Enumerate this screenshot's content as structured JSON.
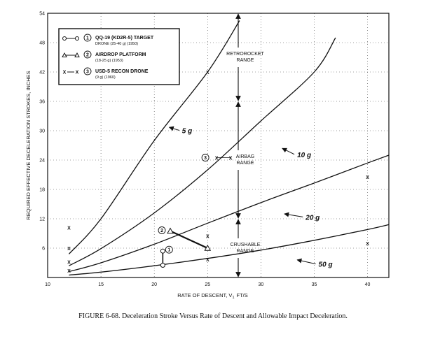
{
  "caption": "FIGURE 6-68. Deceleration Stroke Versus Rate of Descent and Allowable Impact Deceleration.",
  "chart_data": {
    "type": "line",
    "title": "",
    "xlabel": "RATE OF DESCENT, V",
    "xlabel_sub": "1",
    "xlabel_unit": "FT/S",
    "ylabel": "REQUIRED EFFECTIVE DECELERATION STROKES, INCHES",
    "xlim": [
      10,
      42
    ],
    "ylim": [
      0,
      54
    ],
    "xticks": [
      "10",
      "15",
      "20",
      "25",
      "30",
      "35",
      "40"
    ],
    "yticks": [
      "6",
      "12",
      "18",
      "24",
      "30",
      "36",
      "42",
      "48",
      "54"
    ],
    "grid": true,
    "series": [
      {
        "name": "5 g",
        "x": [
          12,
          15,
          20,
          25,
          28
        ],
        "y": [
          4.8,
          12,
          28,
          42,
          52.5
        ]
      },
      {
        "name": "10 g",
        "x": [
          12,
          15,
          20,
          25,
          30,
          35,
          37
        ],
        "y": [
          2.4,
          5.9,
          13.2,
          22,
          32,
          42,
          49
        ]
      },
      {
        "name": "20 g",
        "x": [
          12,
          15,
          20,
          25,
          30,
          35,
          40,
          42
        ],
        "y": [
          1.2,
          3,
          6.8,
          11.1,
          15.3,
          19.3,
          23.4,
          25
        ]
      },
      {
        "name": "50 g",
        "x": [
          12,
          15,
          20,
          25,
          30,
          35,
          40,
          42
        ],
        "y": [
          0.5,
          1.1,
          2.4,
          3.9,
          5.6,
          7.6,
          9.8,
          10.8
        ]
      }
    ],
    "points": [
      {
        "series": "5 g",
        "x": 12,
        "y": 10.2
      },
      {
        "series": "5 g",
        "x": 25,
        "y": 42
      },
      {
        "series": "10 g",
        "x": 12,
        "y": 6
      },
      {
        "series": "10 g",
        "x": 25,
        "y": 8.5
      },
      {
        "series": "20 g",
        "x": 12,
        "y": 3.2
      },
      {
        "series": "20 g",
        "x": 25,
        "y": 3.7
      },
      {
        "series": "20 g",
        "x": 40,
        "y": 20.6
      },
      {
        "series": "50 g",
        "x": 12,
        "y": 1.4
      },
      {
        "series": "50 g",
        "x": 40,
        "y": 7
      }
    ],
    "legend": {
      "placement": "top-left",
      "entries": [
        {
          "id": "1",
          "marker": "circle",
          "title": "QQ-19 (KD2R-5) TARGET",
          "sub": "DRONE (25-40 g) (1950)"
        },
        {
          "id": "2",
          "marker": "triangle",
          "title": "AIRDROP PLATFORM",
          "sub": "(18-25 g) (1953)"
        },
        {
          "id": "3",
          "marker": "x",
          "title": "USD-5 RECON DRONE",
          "sub": "(9 g) (1960)"
        }
      ]
    },
    "systems": [
      {
        "id": "1",
        "marker": "circle",
        "x": [
          20.8,
          20.8
        ],
        "y": [
          5.4,
          2.5
        ]
      },
      {
        "id": "2",
        "marker": "triangle",
        "x": [
          21.5,
          25
        ],
        "y": [
          9.5,
          6
        ]
      },
      {
        "id": "3",
        "marker": "x",
        "x": [
          26.5
        ],
        "y": [
          24.5
        ]
      }
    ],
    "ranges": [
      {
        "label": "RETROROCKET",
        "label2": "RANGE",
        "from": 36,
        "to": 54
      },
      {
        "label": "AIRBAG",
        "label2": "RANGE",
        "from": 12,
        "to": 36
      },
      {
        "label": "CRUSHABLE",
        "label2": "RANGE",
        "from": 0,
        "to": 12
      }
    ]
  }
}
